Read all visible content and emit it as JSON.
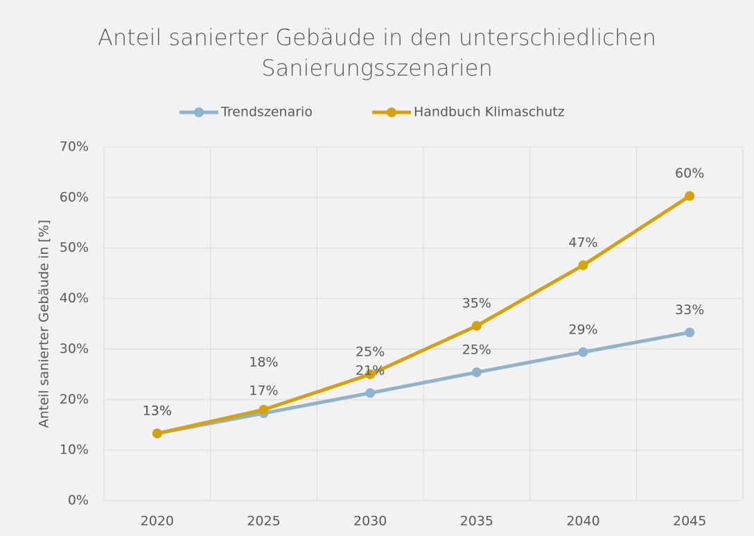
{
  "chart_data": {
    "type": "line",
    "title": "Anteil sanierter Gebäude in den unterschiedlichen Sanierungsszenarien",
    "y_label": "Anteil sanierter Gebäude in [%]",
    "categories": [
      "2020",
      "2025",
      "2030",
      "2035",
      "2040",
      "2045"
    ],
    "series": [
      {
        "name": "Trendszenario",
        "color": "#8fb3cf",
        "values": [
          13.3,
          17.3,
          21.3,
          25.4,
          29.4,
          33.3
        ],
        "value_labels": [
          "13%",
          "17%",
          "21%",
          "25%",
          "29%",
          "33%"
        ]
      },
      {
        "name": "Handbuch Klimaschutz",
        "color": "#d4a20c",
        "values": [
          13.3,
          18.0,
          25.0,
          34.6,
          46.6,
          60.3
        ],
        "value_labels": [
          "13%",
          "18%",
          "25%",
          "35%",
          "47%",
          "60%"
        ]
      }
    ],
    "ylim": [
      0,
      70
    ],
    "yticks": [
      {
        "value": 0,
        "label": "0%"
      },
      {
        "value": 10,
        "label": "10%"
      },
      {
        "value": 20,
        "label": "20%"
      },
      {
        "value": 30,
        "label": "30%"
      },
      {
        "value": 40,
        "label": "40%"
      },
      {
        "value": 50,
        "label": "50%"
      },
      {
        "value": 60,
        "label": "60%"
      },
      {
        "value": 70,
        "label": "70%"
      }
    ],
    "grid": true,
    "legend": "top"
  }
}
